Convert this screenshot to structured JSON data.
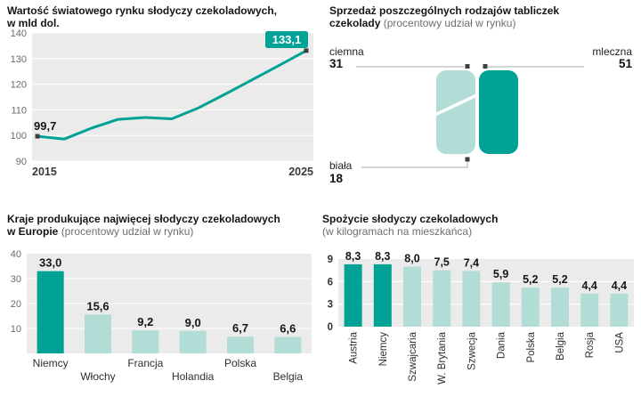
{
  "colors": {
    "accent": "#00a296",
    "light": "#b2ddd7",
    "plot_bg": "#ebebeb"
  },
  "chart_data": [
    {
      "id": "world-market-value",
      "type": "line",
      "title_line1": "Wartość światowego rynku słodyczy czekoladowych,",
      "title_line2": "w mld dol.",
      "x": [
        2015,
        2016,
        2017,
        2018,
        2019,
        2020,
        2021,
        2022,
        2023,
        2024,
        2025
      ],
      "values": [
        99.7,
        98.6,
        102.8,
        106.3,
        107.0,
        106.5,
        110.8,
        116.2,
        121.8,
        127.4,
        133.1
      ],
      "first_label": "99,7",
      "last_label": "133,1",
      "ylim": [
        90,
        140
      ],
      "yticks": [
        140,
        130,
        120,
        110,
        100,
        90
      ],
      "xtick_labels": [
        "2015",
        "2025"
      ],
      "grid": true,
      "legend": "none"
    },
    {
      "id": "chocolate-bar-types",
      "type": "pie",
      "title_line1": "Sprzedaż poszczególnych rodzajów tabliczek",
      "title_line2_bold": "czekolady",
      "subtitle": "(procentowy udział w rynku)",
      "segments": [
        {
          "label": "ciemna",
          "value": 31,
          "value_label": "31"
        },
        {
          "label": "mleczna",
          "value": 51,
          "value_label": "51"
        },
        {
          "label": "biała",
          "value": 18,
          "value_label": "18"
        }
      ]
    },
    {
      "id": "top-producers-europe",
      "type": "bar",
      "title_line1": "Kraje produkujące najwięcej słodyczy czekoladowych",
      "title_line2_bold": "w Europie",
      "subtitle": "(procentowy udział w rynku)",
      "categories": [
        "Niemcy",
        "Włochy",
        "Francja",
        "Holandia",
        "Polska",
        "Belgia"
      ],
      "values": [
        33.0,
        15.6,
        9.2,
        9.0,
        6.7,
        6.6
      ],
      "value_labels": [
        "33,0",
        "15,6",
        "9,2",
        "9,0",
        "6,7",
        "6,6"
      ],
      "ylim": [
        0,
        40
      ],
      "yticks": [
        40,
        30,
        20,
        10
      ],
      "highlight_indices": [
        0
      ],
      "grid": true
    },
    {
      "id": "consumption-per-capita",
      "type": "bar",
      "title_line1": "Spożycie słodyczy czekoladowych",
      "subtitle": "(w kilogramach na mieszkańca)",
      "categories": [
        "Austria",
        "Niemcy",
        "Szwajcaria",
        "W. Brytania",
        "Szwecja",
        "Dania",
        "Polska",
        "Belgia",
        "Rosja",
        "USA"
      ],
      "values": [
        8.3,
        8.3,
        8.0,
        7.5,
        7.4,
        5.9,
        5.2,
        5.2,
        4.4,
        4.4
      ],
      "value_labels": [
        "8,3",
        "8,3",
        "8,0",
        "7,5",
        "7,4",
        "5,9",
        "5,2",
        "5,2",
        "4,4",
        "4,4"
      ],
      "ylim": [
        0,
        9
      ],
      "yticks": [
        9,
        6,
        3,
        0
      ],
      "highlight_indices": [
        0,
        1
      ],
      "grid": true
    }
  ]
}
